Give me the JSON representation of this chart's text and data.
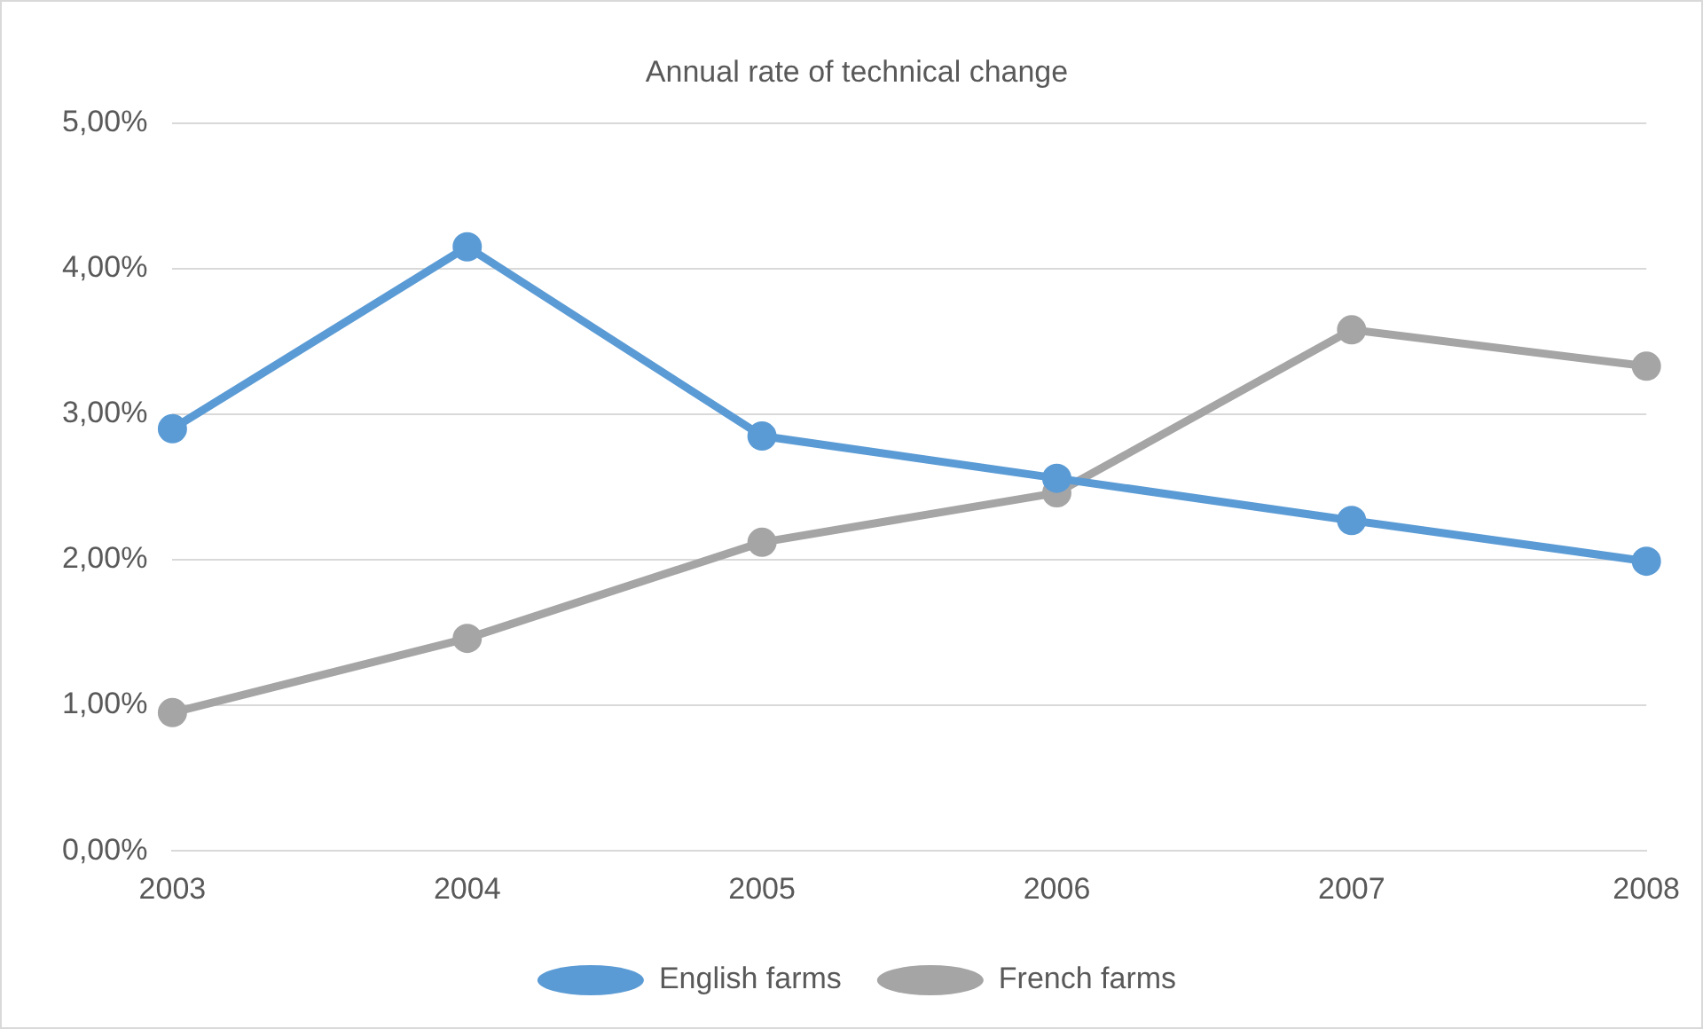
{
  "chart_data": {
    "type": "line",
    "title": "Annual rate of technical change",
    "categories": [
      "2003",
      "2004",
      "2005",
      "2006",
      "2007",
      "2008"
    ],
    "series": [
      {
        "name": "English farms",
        "color": "#5b9bd5",
        "values": [
          2.9,
          4.15,
          2.85,
          2.56,
          2.27,
          1.99
        ]
      },
      {
        "name": "French farms",
        "color": "#a5a5a5",
        "values": [
          0.95,
          1.46,
          2.12,
          2.46,
          3.58,
          3.33
        ]
      }
    ],
    "ylim": [
      0,
      5
    ],
    "yticks": [
      {
        "value": 0,
        "label": "0,00%"
      },
      {
        "value": 1,
        "label": "1,00%"
      },
      {
        "value": 2,
        "label": "2,00%"
      },
      {
        "value": 3,
        "label": "3,00%"
      },
      {
        "value": 4,
        "label": "4,00%"
      },
      {
        "value": 5,
        "label": "5,00%"
      }
    ],
    "grid": "y",
    "legend": "bottom",
    "marker": "circle",
    "line_style": "solid"
  }
}
